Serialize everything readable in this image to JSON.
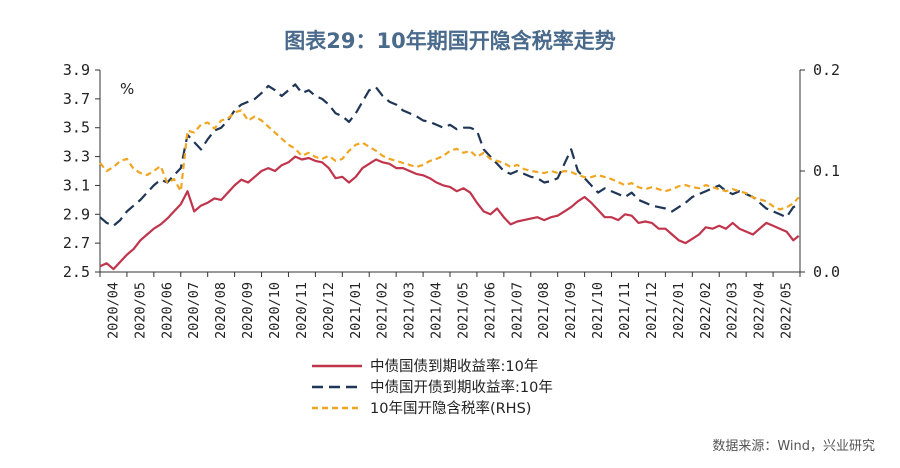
{
  "chart_data": {
    "type": "line",
    "title": "图表29：10年期国开隐含税率走势",
    "unit_label": "%",
    "source": "数据来源：Wind，兴业研究",
    "y_left": {
      "ticks": [
        "3.9",
        "3.7",
        "3.5",
        "3.3",
        "3.1",
        "2.9",
        "2.7",
        "2.5"
      ],
      "lim": [
        2.5,
        3.9
      ]
    },
    "y_right": {
      "ticks": [
        "0.2",
        "0.1",
        "0.0"
      ],
      "lim": [
        0.0,
        0.2
      ]
    },
    "x_ticks": [
      "2020/04",
      "2020/05",
      "2020/06",
      "2020/07",
      "2020/08",
      "2020/09",
      "2020/10",
      "2020/11",
      "2020/12",
      "2021/01",
      "2021/02",
      "2021/03",
      "2021/04",
      "2021/05",
      "2021/06",
      "2021/07",
      "2021/08",
      "2021/09",
      "2021/10",
      "2021/11",
      "2021/12",
      "2022/01",
      "2022/02",
      "2022/03",
      "2022/04",
      "2022/05"
    ],
    "series": [
      {
        "name": "中债国债到期收益率:10年",
        "axis": "left",
        "color": "#c0344c",
        "dash": "solid",
        "x": [
          0,
          0.25,
          0.5,
          0.75,
          1,
          1.25,
          1.5,
          1.75,
          2,
          2.25,
          2.5,
          2.75,
          3,
          3.25,
          3.5,
          3.75,
          4,
          4.25,
          4.5,
          4.75,
          5,
          5.25,
          5.5,
          5.75,
          6,
          6.25,
          6.5,
          6.75,
          7,
          7.25,
          7.5,
          7.75,
          8,
          8.25,
          8.5,
          8.75,
          9,
          9.25,
          9.5,
          9.75,
          10,
          10.25,
          10.5,
          10.75,
          11,
          11.25,
          11.5,
          11.75,
          12,
          12.25,
          12.5,
          12.75,
          13,
          13.25,
          13.5,
          13.75,
          14,
          14.25,
          14.5,
          14.75,
          15,
          15.25,
          15.5,
          15.75,
          16,
          16.25,
          16.5,
          16.75,
          17,
          17.25,
          17.5,
          17.75,
          18,
          18.25,
          18.5,
          18.75,
          19,
          19.25,
          19.5,
          19.75,
          20,
          20.25,
          20.5,
          20.75,
          21,
          21.25,
          21.5,
          21.75,
          22,
          22.25,
          22.5,
          22.75,
          23,
          23.25,
          23.5,
          23.75,
          24,
          24.25,
          24.5,
          24.75,
          25,
          25.25,
          25.5,
          25.75,
          25.95
        ],
        "values": [
          2.54,
          2.56,
          2.52,
          2.57,
          2.62,
          2.66,
          2.72,
          2.76,
          2.8,
          2.83,
          2.87,
          2.92,
          2.97,
          3.06,
          2.92,
          2.96,
          2.98,
          3.01,
          3.0,
          3.05,
          3.1,
          3.14,
          3.12,
          3.16,
          3.2,
          3.22,
          3.2,
          3.24,
          3.26,
          3.3,
          3.28,
          3.29,
          3.27,
          3.26,
          3.22,
          3.15,
          3.16,
          3.12,
          3.16,
          3.22,
          3.25,
          3.28,
          3.26,
          3.25,
          3.22,
          3.22,
          3.2,
          3.18,
          3.17,
          3.15,
          3.12,
          3.1,
          3.09,
          3.06,
          3.08,
          3.05,
          2.98,
          2.92,
          2.9,
          2.94,
          2.88,
          2.83,
          2.85,
          2.86,
          2.87,
          2.88,
          2.86,
          2.88,
          2.89,
          2.92,
          2.95,
          2.99,
          3.02,
          2.98,
          2.93,
          2.88,
          2.88,
          2.86,
          2.9,
          2.89,
          2.84,
          2.85,
          2.84,
          2.8,
          2.8,
          2.76,
          2.72,
          2.7,
          2.73,
          2.76,
          2.81,
          2.8,
          2.82,
          2.8,
          2.84,
          2.8,
          2.78,
          2.76,
          2.8,
          2.84,
          2.82,
          2.8,
          2.78,
          2.72,
          2.75
        ]
      },
      {
        "name": "中债国开债到期收益率:10年",
        "axis": "left",
        "color": "#1f3656",
        "dash": "long",
        "x": [
          0,
          0.25,
          0.5,
          0.75,
          1,
          1.25,
          1.5,
          1.75,
          2,
          2.25,
          2.5,
          2.75,
          3,
          3.25,
          3.5,
          3.75,
          4,
          4.25,
          4.5,
          4.75,
          5,
          5.25,
          5.5,
          5.75,
          6,
          6.25,
          6.5,
          6.75,
          7,
          7.25,
          7.5,
          7.75,
          8,
          8.25,
          8.5,
          8.75,
          9,
          9.25,
          9.5,
          9.75,
          10,
          10.25,
          10.5,
          10.75,
          11,
          11.25,
          11.5,
          11.75,
          12,
          12.25,
          12.5,
          12.75,
          13,
          13.25,
          13.5,
          13.75,
          14,
          14.25,
          14.5,
          14.75,
          15,
          15.25,
          15.5,
          15.75,
          16,
          16.25,
          16.5,
          16.75,
          17,
          17.25,
          17.5,
          17.75,
          18,
          18.25,
          18.5,
          18.75,
          19,
          19.25,
          19.5,
          19.75,
          20,
          20.25,
          20.5,
          20.75,
          21,
          21.25,
          21.5,
          21.75,
          22,
          22.25,
          22.5,
          22.75,
          23,
          23.25,
          23.5,
          23.75,
          24,
          24.25,
          24.5,
          24.75,
          25,
          25.25,
          25.5,
          25.75,
          25.95
        ],
        "values": [
          2.88,
          2.84,
          2.82,
          2.86,
          2.92,
          2.96,
          3.0,
          3.05,
          3.1,
          3.14,
          3.12,
          3.17,
          3.22,
          3.45,
          3.4,
          3.35,
          3.42,
          3.48,
          3.5,
          3.55,
          3.62,
          3.66,
          3.68,
          3.7,
          3.74,
          3.79,
          3.76,
          3.72,
          3.76,
          3.8,
          3.74,
          3.76,
          3.72,
          3.7,
          3.66,
          3.6,
          3.58,
          3.54,
          3.6,
          3.68,
          3.76,
          3.78,
          3.72,
          3.68,
          3.66,
          3.62,
          3.6,
          3.58,
          3.55,
          3.54,
          3.52,
          3.5,
          3.52,
          3.49,
          3.5,
          3.5,
          3.48,
          3.35,
          3.3,
          3.25,
          3.2,
          3.18,
          3.2,
          3.18,
          3.16,
          3.15,
          3.12,
          3.13,
          3.15,
          3.25,
          3.35,
          3.2,
          3.15,
          3.1,
          3.05,
          3.08,
          3.06,
          3.04,
          3.02,
          3.05,
          3.0,
          2.98,
          2.96,
          2.95,
          2.94,
          2.92,
          2.95,
          2.98,
          3.02,
          3.04,
          3.06,
          3.08,
          3.1,
          3.06,
          3.04,
          3.06,
          3.04,
          3.02,
          2.98,
          2.94,
          2.92,
          2.9,
          2.88,
          2.95,
          2.96
        ]
      },
      {
        "name": "10年国开隐含税率(RHS)",
        "axis": "right",
        "color": "#f0a623",
        "dash": "short",
        "x": [
          0,
          0.25,
          0.5,
          0.75,
          1,
          1.25,
          1.5,
          1.75,
          2,
          2.25,
          2.5,
          2.75,
          3,
          3.25,
          3.5,
          3.75,
          4,
          4.25,
          4.5,
          4.75,
          5,
          5.25,
          5.5,
          5.75,
          6,
          6.25,
          6.5,
          6.75,
          7,
          7.25,
          7.5,
          7.75,
          8,
          8.25,
          8.5,
          8.75,
          9,
          9.25,
          9.5,
          9.75,
          10,
          10.25,
          10.5,
          10.75,
          11,
          11.25,
          11.5,
          11.75,
          12,
          12.25,
          12.5,
          12.75,
          13,
          13.25,
          13.5,
          13.75,
          14,
          14.25,
          14.5,
          14.75,
          15,
          15.25,
          15.5,
          15.75,
          16,
          16.25,
          16.5,
          16.75,
          17,
          17.25,
          17.5,
          17.75,
          18,
          18.25,
          18.5,
          18.75,
          19,
          19.25,
          19.5,
          19.75,
          20,
          20.25,
          20.5,
          20.75,
          21,
          21.25,
          21.5,
          21.75,
          22,
          22.25,
          22.5,
          22.75,
          23,
          23.25,
          23.5,
          23.75,
          24,
          24.25,
          24.5,
          24.75,
          25,
          25.25,
          25.5,
          25.75,
          25.95
        ],
        "values": [
          0.108,
          0.1,
          0.104,
          0.11,
          0.112,
          0.102,
          0.098,
          0.096,
          0.1,
          0.105,
          0.088,
          0.092,
          0.08,
          0.14,
          0.138,
          0.146,
          0.148,
          0.142,
          0.15,
          0.152,
          0.158,
          0.16,
          0.15,
          0.154,
          0.15,
          0.144,
          0.138,
          0.132,
          0.126,
          0.122,
          0.115,
          0.118,
          0.114,
          0.112,
          0.115,
          0.11,
          0.112,
          0.12,
          0.126,
          0.128,
          0.124,
          0.12,
          0.115,
          0.112,
          0.11,
          0.108,
          0.106,
          0.104,
          0.106,
          0.11,
          0.112,
          0.115,
          0.12,
          0.122,
          0.118,
          0.12,
          0.114,
          0.118,
          0.112,
          0.11,
          0.108,
          0.104,
          0.106,
          0.102,
          0.1,
          0.099,
          0.098,
          0.1,
          0.098,
          0.1,
          0.099,
          0.096,
          0.094,
          0.094,
          0.096,
          0.094,
          0.092,
          0.089,
          0.086,
          0.088,
          0.084,
          0.082,
          0.084,
          0.082,
          0.08,
          0.082,
          0.085,
          0.086,
          0.084,
          0.083,
          0.086,
          0.084,
          0.082,
          0.08,
          0.082,
          0.08,
          0.078,
          0.074,
          0.072,
          0.07,
          0.065,
          0.062,
          0.064,
          0.068,
          0.074
        ]
      }
    ],
    "legend_position": "bottom-center",
    "grid": false
  }
}
